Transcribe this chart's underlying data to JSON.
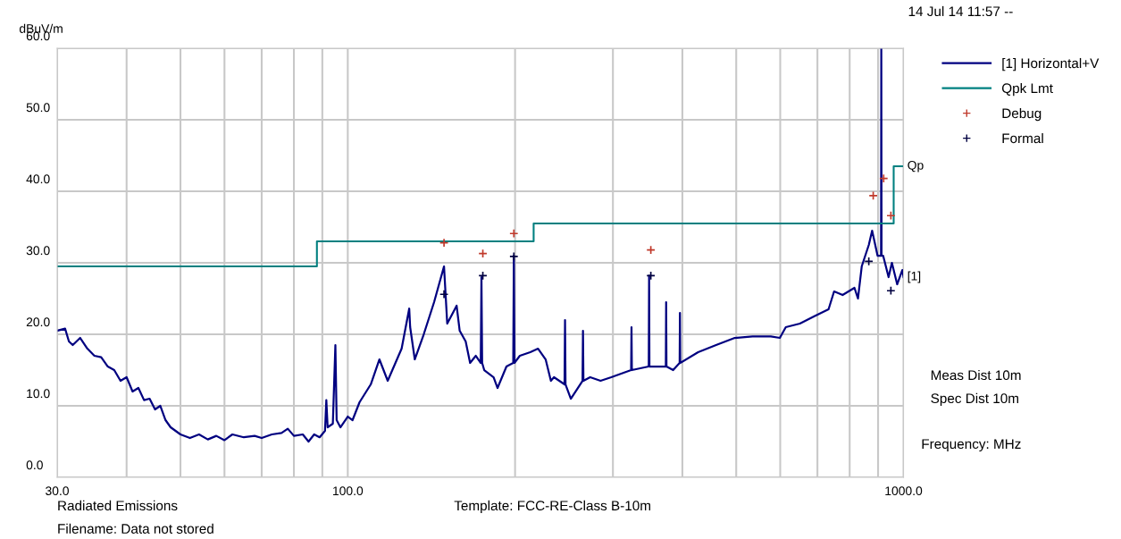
{
  "chart_data": {
    "type": "line",
    "ylabel": "dBuV/m",
    "xlabel": "Frequency: MHz",
    "log": "x",
    "grid": true,
    "legend": "top right",
    "xlim": [
      30,
      1000
    ],
    "ylim": [
      0,
      60
    ],
    "xticks": [
      {
        "value": 30,
        "label": "30.0"
      },
      {
        "value": 40,
        "label": null
      },
      {
        "value": 50,
        "label": null
      },
      {
        "value": 60,
        "label": null
      },
      {
        "value": 70,
        "label": null
      },
      {
        "value": 80,
        "label": null
      },
      {
        "value": 90,
        "label": null
      },
      {
        "value": 100,
        "label": "100.0"
      },
      {
        "value": 200,
        "label": null
      },
      {
        "value": 300,
        "label": null
      },
      {
        "value": 400,
        "label": null
      },
      {
        "value": 500,
        "label": null
      },
      {
        "value": 600,
        "label": null
      },
      {
        "value": 700,
        "label": null
      },
      {
        "value": 800,
        "label": null
      },
      {
        "value": 900,
        "label": null
      },
      {
        "value": 1000,
        "label": "1000.0"
      }
    ],
    "yticks": [
      {
        "value": 0,
        "label": "0.0"
      },
      {
        "value": 10,
        "label": "10.0"
      },
      {
        "value": 20,
        "label": "20.0"
      },
      {
        "value": 30,
        "label": "30.0"
      },
      {
        "value": 40,
        "label": "40.0"
      },
      {
        "value": 50,
        "label": "50.0"
      },
      {
        "value": 60,
        "label": "60.0"
      }
    ],
    "series": [
      {
        "name": "[1] Horizontal+V",
        "color": "#000080",
        "x": [
          30,
          31,
          31.5,
          32,
          33,
          34,
          35,
          36,
          37,
          38,
          39,
          40,
          41,
          42,
          43,
          44,
          45,
          46,
          47,
          48,
          50,
          52,
          54,
          56,
          58,
          60,
          62,
          65,
          68,
          70,
          73,
          76,
          78,
          80,
          83,
          85,
          87,
          89,
          91,
          91.5,
          92,
          94,
          95,
          95.5,
          97,
          100,
          102,
          105,
          110,
          114,
          118,
          125,
          129,
          129.5,
          132,
          137,
          143,
          149,
          151,
          157,
          159,
          163,
          166,
          170,
          173.5,
          174,
          174.5,
          176,
          183,
          186,
          193,
          198.5,
          199,
          199.5,
          204,
          213,
          220,
          227,
          232,
          235,
          245.5,
          246,
          246.5,
          252,
          264.5,
          265,
          265.5,
          273,
          285,
          298,
          323.5,
          324,
          324.5,
          348,
          348.5,
          349,
          373.5,
          374,
          374.5,
          385,
          395.5,
          396,
          396.5,
          427,
          460,
          497,
          535,
          577,
          599,
          614,
          651,
          690,
          733,
          750,
          777,
          816,
          828,
          841,
          866,
          878,
          898,
          911,
          912,
          913,
          919,
          940,
          953,
          974,
          995,
          1000
        ],
        "values": [
          20.5,
          20.8,
          19,
          18.5,
          19.5,
          18,
          17,
          16.8,
          15.5,
          15,
          13.5,
          14,
          12,
          12.5,
          10.8,
          11,
          9.5,
          10,
          8,
          7,
          6,
          5.5,
          6,
          5.3,
          5.8,
          5.2,
          6,
          5.6,
          5.8,
          5.5,
          6,
          6.2,
          6.8,
          5.8,
          6,
          5,
          6,
          5.6,
          6.5,
          10.8,
          7,
          7.5,
          18.5,
          8,
          7,
          8.5,
          8,
          10.5,
          13,
          16.5,
          13.5,
          18,
          23.6,
          21,
          16.5,
          20,
          24.5,
          29.5,
          21.5,
          24,
          20.5,
          19,
          16,
          17,
          16,
          28,
          16,
          15,
          14,
          12.5,
          15.5,
          16,
          31,
          16,
          17,
          17.5,
          18,
          16.5,
          13.5,
          14,
          13,
          22,
          13,
          11,
          13.5,
          20.5,
          13.5,
          14,
          13.5,
          14,
          15,
          21,
          15,
          15.5,
          28.2,
          15.5,
          15.5,
          24.5,
          15.5,
          15,
          16,
          23,
          16,
          17.5,
          18.5,
          19.5,
          19.7,
          19.7,
          19.5,
          21,
          21.5,
          22.5,
          23.5,
          26,
          25.5,
          26.5,
          25,
          29.5,
          32.5,
          34.5,
          31,
          31,
          60,
          31,
          31,
          28,
          30,
          27,
          29,
          28
        ]
      },
      {
        "name": "Qpk Lmt",
        "type": "step",
        "color": "#008080",
        "x": [
          30,
          88,
          216,
          960,
          1000
        ],
        "values": [
          29.5,
          33.0,
          35.5,
          43.5,
          43.5
        ]
      },
      {
        "name": "Debug",
        "type": "scatter",
        "marker": "cross",
        "color": "#c0392b",
        "x": [
          149,
          175,
          199,
          351,
          882,
          921,
          949
        ],
        "values": [
          32.8,
          31.3,
          34.1,
          31.8,
          39.4,
          41.8,
          36.6
        ]
      },
      {
        "name": "Formal",
        "type": "scatter",
        "marker": "cross",
        "color": "#000040",
        "x": [
          149,
          175,
          199,
          351,
          866,
          949
        ],
        "values": [
          25.6,
          28.2,
          30.9,
          28.2,
          30.2,
          26.1
        ]
      }
    ],
    "annotations": [
      {
        "text": "Qp",
        "x": 1000,
        "y": 43.5
      },
      {
        "text": "[1]",
        "x": 1000,
        "y": 28
      },
      "14 Jul 14 11:57 --",
      "Meas Dist 10m",
      "Spec Dist 10m",
      "Radiated Emissions",
      "Template: FCC-RE-Class B-10m",
      "Filename: Data not stored"
    ]
  }
}
